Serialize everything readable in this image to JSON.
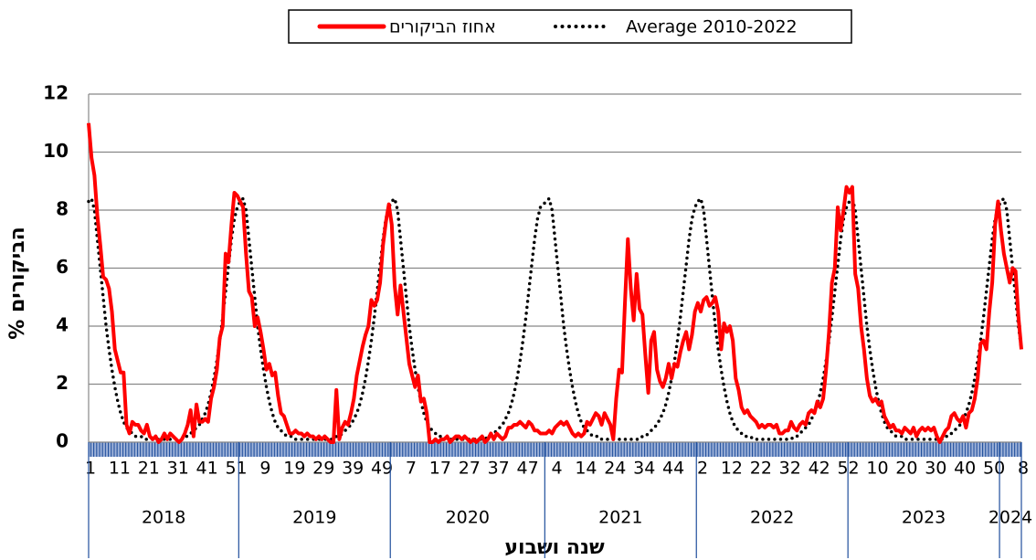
{
  "chart_data": {
    "type": "line",
    "y_label": "% הביקורים",
    "x_label": "שנה ושבוע",
    "ylim": [
      0,
      12
    ],
    "yticks": [
      0,
      2,
      4,
      6,
      8,
      10,
      12
    ],
    "grid": true,
    "years": [
      "2018",
      "2019",
      "2020",
      "2021",
      "2022",
      "2023",
      "2024"
    ],
    "year_weeks": [
      52,
      52,
      53,
      52,
      52,
      52,
      8
    ],
    "categories": [
      "1",
      null,
      null,
      null,
      null,
      null,
      null,
      null,
      null,
      null,
      "11",
      null,
      null,
      null,
      null,
      null,
      null,
      null,
      null,
      null,
      "21",
      null,
      null,
      null,
      null,
      null,
      null,
      null,
      null,
      null,
      "31",
      null,
      null,
      null,
      null,
      null,
      null,
      null,
      null,
      null,
      "41",
      null,
      null,
      null,
      null,
      null,
      null,
      null,
      null,
      null,
      "51",
      null,
      null,
      null,
      null,
      null,
      null,
      null,
      null,
      null,
      "9",
      null,
      null,
      null,
      null,
      null,
      null,
      null,
      null,
      null,
      "19",
      null,
      null,
      null,
      null,
      null,
      null,
      null,
      null,
      null,
      "29",
      null,
      null,
      null,
      null,
      null,
      null,
      null,
      null,
      null,
      "39",
      null,
      null,
      null,
      null,
      null,
      null,
      null,
      null,
      null,
      "49",
      null,
      null,
      null,
      null,
      null,
      null,
      null,
      null,
      null,
      "7",
      null,
      null,
      null,
      null,
      null,
      null,
      null,
      null,
      null,
      "17",
      null,
      null,
      null,
      null,
      null,
      null,
      null,
      null,
      null,
      "27",
      null,
      null,
      null,
      null,
      null,
      null,
      null,
      null,
      null,
      "37",
      null,
      null,
      null,
      null,
      null,
      null,
      null,
      null,
      null,
      "47",
      null,
      null,
      null,
      null,
      null,
      null,
      null,
      null,
      null,
      "4",
      null,
      null,
      null,
      null,
      null,
      null,
      null,
      null,
      null,
      "14",
      null,
      null,
      null,
      null,
      null,
      null,
      null,
      null,
      null,
      "24",
      null,
      null,
      null,
      null,
      null,
      null,
      null,
      null,
      null,
      "34",
      null,
      null,
      null,
      null,
      null,
      null,
      null,
      null,
      null,
      "44",
      null,
      null,
      null,
      null,
      null,
      null,
      null,
      null,
      null,
      "2",
      null,
      null,
      null,
      null,
      null,
      null,
      null,
      null,
      null,
      "12",
      null,
      null,
      null,
      null,
      null,
      null,
      null,
      null,
      null,
      "22",
      null,
      null,
      null,
      null,
      null,
      null,
      null,
      null,
      null,
      "32",
      null,
      null,
      null,
      null,
      null,
      null,
      null,
      null,
      null,
      "42",
      null,
      null,
      null,
      null,
      null,
      null,
      null,
      null,
      null,
      "52",
      null,
      null,
      null,
      null,
      null,
      null,
      null,
      null,
      null,
      "10",
      null,
      null,
      null,
      null,
      null,
      null,
      null,
      null,
      null,
      "20",
      null,
      null,
      null,
      null,
      null,
      null,
      null,
      null,
      null,
      "30",
      null,
      null,
      null,
      null,
      null,
      null,
      null,
      null,
      null,
      "40",
      null,
      null,
      null,
      null,
      null,
      null,
      null,
      null,
      null,
      "50",
      null,
      null,
      null,
      null,
      null,
      null,
      null,
      null,
      null,
      "8"
    ],
    "series": [
      {
        "name": "אחוז הביקורים",
        "color": "#ff0000",
        "style": "solid",
        "values": [
          11.0,
          9.8,
          9.2,
          7.8,
          6.8,
          5.7,
          5.6,
          5.3,
          4.5,
          3.2,
          2.8,
          2.4,
          2.4,
          0.6,
          0.3,
          0.7,
          0.6,
          0.6,
          0.4,
          0.3,
          0.6,
          0.2,
          0.1,
          0.2,
          0.0,
          0.1,
          0.3,
          0.1,
          0.3,
          0.2,
          0.1,
          0.0,
          0.1,
          0.3,
          0.6,
          1.1,
          0.2,
          1.3,
          0.7,
          0.7,
          0.8,
          0.7,
          1.5,
          1.9,
          2.5,
          3.6,
          4.0,
          6.5,
          6.2,
          7.5,
          8.6,
          8.5,
          8.3,
          8.1,
          6.5,
          5.2,
          5.0,
          4.0,
          4.3,
          3.8,
          3.2,
          2.5,
          2.7,
          2.3,
          2.4,
          1.6,
          1.0,
          0.9,
          0.6,
          0.3,
          0.3,
          0.4,
          0.3,
          0.3,
          0.2,
          0.3,
          0.2,
          0.2,
          0.1,
          0.2,
          0.1,
          0.2,
          0.1,
          0.0,
          0.0,
          1.8,
          0.1,
          0.5,
          0.7,
          0.6,
          1.0,
          1.5,
          2.3,
          2.8,
          3.3,
          3.7,
          4.0,
          4.9,
          4.7,
          4.9,
          5.5,
          6.8,
          7.6,
          8.2,
          7.5,
          5.4,
          4.4,
          5.4,
          4.5,
          3.6,
          2.7,
          2.3,
          1.9,
          2.3,
          1.4,
          1.5,
          1.0,
          0.0,
          0.0,
          0.1,
          0.0,
          0.1,
          0.1,
          0.2,
          0.0,
          0.1,
          0.2,
          0.2,
          0.1,
          0.2,
          0.1,
          0.0,
          0.1,
          0.0,
          0.1,
          0.2,
          0.0,
          0.1,
          0.3,
          0.1,
          0.3,
          0.2,
          0.1,
          0.2,
          0.5,
          0.5,
          0.6,
          0.6,
          0.7,
          0.6,
          0.5,
          0.7,
          0.6,
          0.4,
          0.4,
          0.3,
          0.3,
          0.3,
          0.4,
          0.3,
          0.5,
          0.6,
          0.7,
          0.6,
          0.7,
          0.5,
          0.3,
          0.2,
          0.3,
          0.2,
          0.3,
          0.7,
          0.6,
          0.8,
          1.0,
          0.9,
          0.6,
          1.0,
          0.8,
          0.6,
          0.1,
          1.5,
          2.5,
          2.4,
          4.8,
          7.0,
          5.3,
          4.2,
          5.8,
          4.6,
          4.4,
          3.0,
          1.7,
          3.5,
          3.8,
          2.5,
          2.1,
          1.9,
          2.2,
          2.7,
          2.2,
          2.7,
          2.6,
          3.1,
          3.5,
          3.8,
          3.2,
          3.7,
          4.5,
          4.8,
          4.5,
          4.9,
          5.0,
          4.7,
          4.8,
          5.0,
          4.5,
          3.2,
          4.1,
          3.8,
          4.0,
          3.5,
          2.2,
          1.8,
          1.2,
          1.0,
          1.1,
          0.9,
          0.8,
          0.7,
          0.5,
          0.6,
          0.5,
          0.6,
          0.6,
          0.5,
          0.6,
          0.3,
          0.3,
          0.4,
          0.4,
          0.7,
          0.5,
          0.4,
          0.6,
          0.7,
          0.6,
          1.0,
          1.1,
          1.0,
          1.4,
          1.2,
          1.5,
          2.5,
          3.8,
          5.5,
          6.0,
          8.1,
          7.3,
          8.0,
          8.8,
          8.6,
          8.8,
          5.8,
          5.3,
          4.0,
          3.2,
          2.2,
          1.6,
          1.4,
          1.5,
          1.3,
          1.4,
          0.9,
          0.7,
          0.5,
          0.6,
          0.4,
          0.4,
          0.3,
          0.5,
          0.4,
          0.3,
          0.5,
          0.2,
          0.4,
          0.5,
          0.4,
          0.5,
          0.4,
          0.5,
          0.2,
          0.0,
          0.2,
          0.4,
          0.5,
          0.9,
          1.0,
          0.8,
          0.7,
          0.9,
          0.5,
          1.0,
          1.1,
          1.5,
          2.2,
          3.4,
          3.5,
          3.2,
          4.5,
          5.5,
          7.5,
          8.3,
          7.3,
          6.5,
          6.0,
          5.5,
          6.0,
          5.9,
          4.3,
          3.2
        ]
      },
      {
        "name": "Average 2010-2022",
        "color": "#000000",
        "style": "dotted",
        "values": [
          8.3,
          8.4,
          8.0,
          7.0,
          6.0,
          5.0,
          4.0,
          3.2,
          2.5,
          1.9,
          1.4,
          1.0,
          0.7,
          0.5,
          0.4,
          0.3,
          0.2,
          0.2,
          0.2,
          0.1,
          0.1,
          0.1,
          0.1,
          0.1,
          0.1,
          0.1,
          0.1,
          0.1,
          0.1,
          0.1,
          0.1,
          0.1,
          0.1,
          0.2,
          0.2,
          0.3,
          0.4,
          0.5,
          0.6,
          0.8,
          1.0,
          1.3,
          1.7,
          2.2,
          2.8,
          3.5,
          4.3,
          5.2,
          6.1,
          7.0,
          7.7,
          8.1,
          8.3,
          8.4,
          8.0,
          7.0,
          6.0,
          5.0,
          4.0,
          3.2,
          2.5,
          1.9,
          1.4,
          1.0,
          0.7,
          0.5,
          0.4,
          0.3,
          0.2,
          0.2,
          0.2,
          0.1,
          0.1,
          0.1,
          0.1,
          0.1,
          0.1,
          0.1,
          0.1,
          0.1,
          0.1,
          0.1,
          0.1,
          0.1,
          0.1,
          0.2,
          0.2,
          0.3,
          0.4,
          0.5,
          0.6,
          0.8,
          1.0,
          1.3,
          1.7,
          2.2,
          2.8,
          3.5,
          4.3,
          5.2,
          6.1,
          7.0,
          7.7,
          8.1,
          8.3,
          8.4,
          8.0,
          7.0,
          6.0,
          5.0,
          4.0,
          3.2,
          2.5,
          1.9,
          1.4,
          1.0,
          0.7,
          0.5,
          0.4,
          0.3,
          0.2,
          0.2,
          0.2,
          0.1,
          0.1,
          0.1,
          0.1,
          0.1,
          0.1,
          0.1,
          0.1,
          0.1,
          0.1,
          0.1,
          0.1,
          0.1,
          0.1,
          0.2,
          0.2,
          0.3,
          0.4,
          0.5,
          0.6,
          0.8,
          1.0,
          1.3,
          1.7,
          2.2,
          2.8,
          3.5,
          4.3,
          5.2,
          6.1,
          7.0,
          7.7,
          8.1,
          8.2,
          8.3,
          8.4,
          8.0,
          7.0,
          6.0,
          5.0,
          4.0,
          3.2,
          2.5,
          1.9,
          1.4,
          1.0,
          0.7,
          0.5,
          0.4,
          0.3,
          0.2,
          0.2,
          0.2,
          0.1,
          0.1,
          0.1,
          0.1,
          0.1,
          0.1,
          0.1,
          0.1,
          0.1,
          0.1,
          0.1,
          0.1,
          0.1,
          0.1,
          0.2,
          0.2,
          0.3,
          0.4,
          0.5,
          0.6,
          0.8,
          1.0,
          1.3,
          1.7,
          2.2,
          2.8,
          3.5,
          4.3,
          5.2,
          6.1,
          7.0,
          7.7,
          8.1,
          8.3,
          8.4,
          8.0,
          7.0,
          6.0,
          5.0,
          4.0,
          3.2,
          2.5,
          1.9,
          1.4,
          1.0,
          0.7,
          0.5,
          0.4,
          0.3,
          0.2,
          0.2,
          0.2,
          0.1,
          0.1,
          0.1,
          0.1,
          0.1,
          0.1,
          0.1,
          0.1,
          0.1,
          0.1,
          0.1,
          0.1,
          0.1,
          0.1,
          0.2,
          0.2,
          0.3,
          0.4,
          0.5,
          0.6,
          0.8,
          1.0,
          1.3,
          1.7,
          2.2,
          2.8,
          3.5,
          4.3,
          5.2,
          6.1,
          7.0,
          7.7,
          8.1,
          8.3,
          8.4,
          8.0,
          7.0,
          6.0,
          5.0,
          4.0,
          3.2,
          2.5,
          1.9,
          1.4,
          1.0,
          0.7,
          0.5,
          0.4,
          0.3,
          0.2,
          0.2,
          0.2,
          0.1,
          0.1,
          0.1,
          0.1,
          0.1,
          0.1,
          0.1,
          0.1,
          0.1,
          0.1,
          0.1,
          0.1,
          0.1,
          0.1,
          0.2,
          0.2,
          0.3,
          0.4,
          0.5,
          0.6,
          0.8,
          1.0,
          1.3,
          1.7,
          2.2,
          2.8,
          3.5,
          4.3,
          5.2,
          6.1,
          7.0,
          7.7,
          8.1,
          8.3,
          8.4,
          8.0,
          7.0,
          6.0,
          5.0,
          4.0,
          3.2
        ]
      }
    ]
  }
}
